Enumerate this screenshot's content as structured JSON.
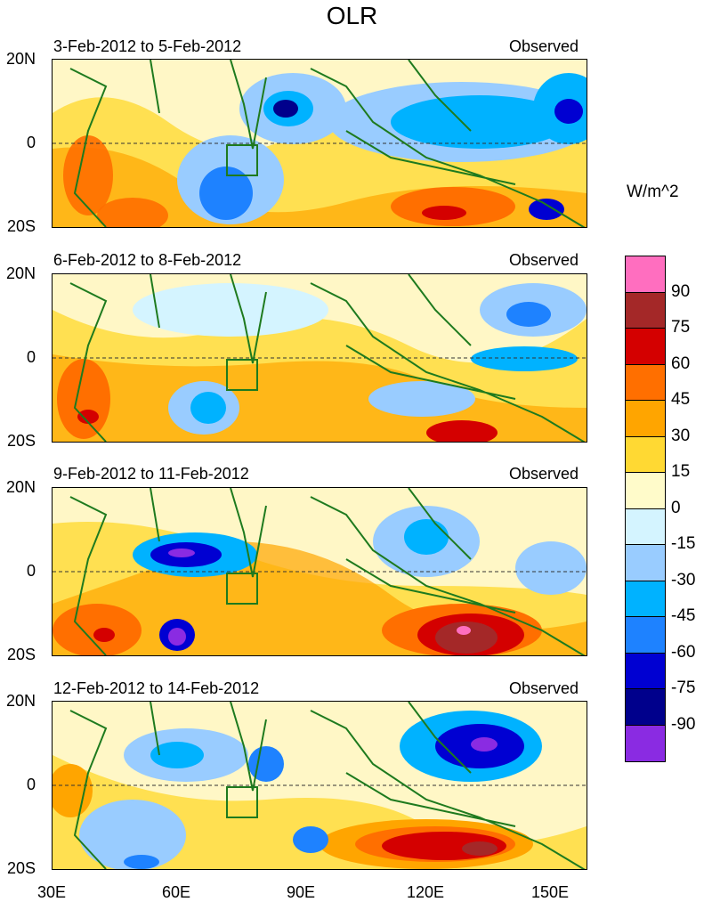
{
  "title": "OLR",
  "units": "W/m^2",
  "panels": [
    {
      "period": "3-Feb-2012 to 5-Feb-2012",
      "kind": "Observed"
    },
    {
      "period": "6-Feb-2012 to 8-Feb-2012",
      "kind": "Observed"
    },
    {
      "period": "9-Feb-2012 to 11-Feb-2012",
      "kind": "Observed"
    },
    {
      "period": "12-Feb-2012 to 14-Feb-2012",
      "kind": "Observed"
    }
  ],
  "lat_labels": [
    "20N",
    "0",
    "20S"
  ],
  "lon_labels": [
    "30E",
    "60E",
    "90E",
    "120E",
    "150E"
  ],
  "colorbar": {
    "labels": [
      "90",
      "75",
      "60",
      "45",
      "30",
      "15",
      "0",
      "-15",
      "-30",
      "-45",
      "-60",
      "-75",
      "-90"
    ],
    "colors": [
      "#ff6ebf",
      "#a42828",
      "#d40000",
      "#ff6f00",
      "#ffa500",
      "#ffd933",
      "#fffbca",
      "#d4f4ff",
      "#99ccff",
      "#00b2ff",
      "#1e82ff",
      "#0000d2",
      "#00008c",
      "#8a2be2"
    ]
  }
}
